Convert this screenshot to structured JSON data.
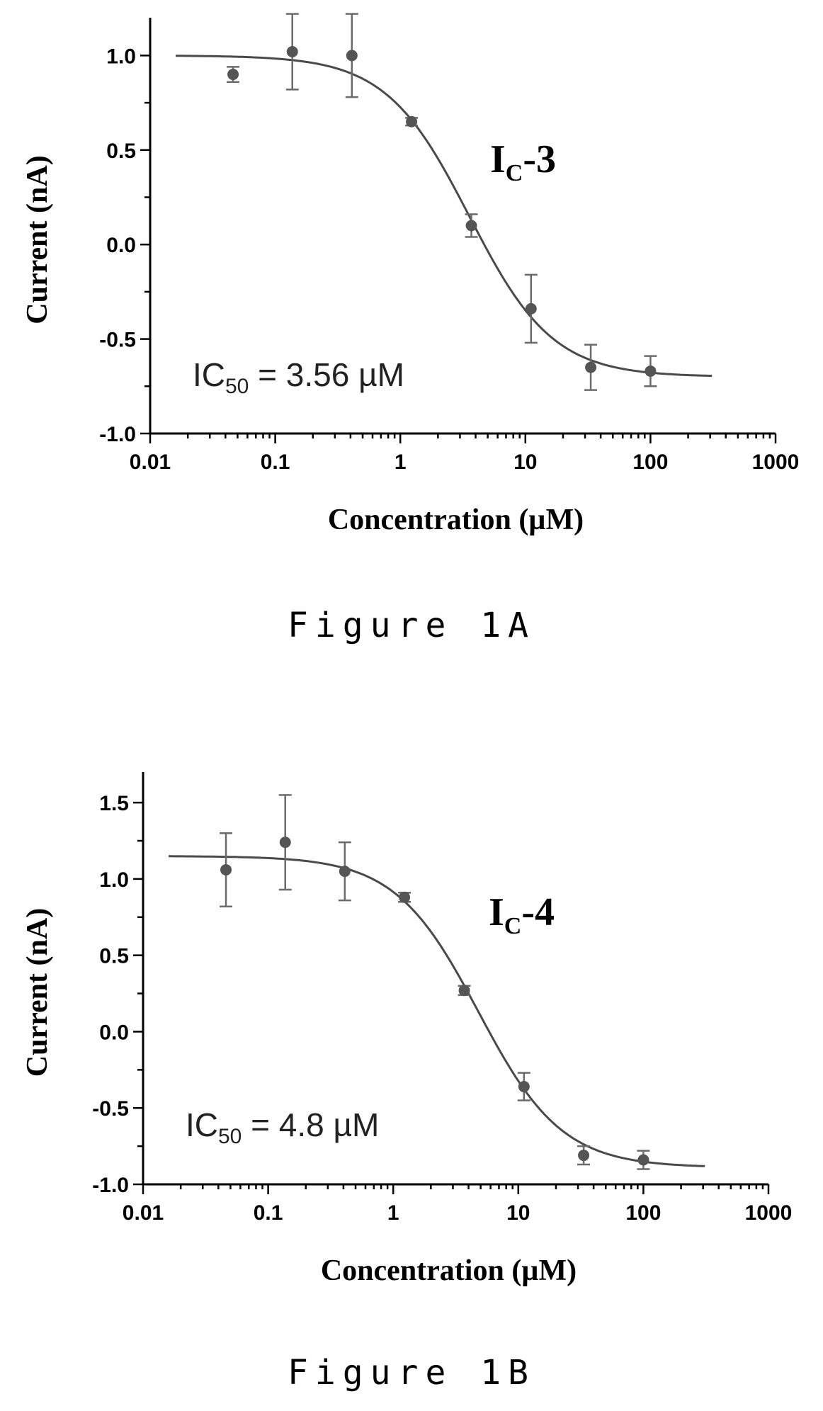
{
  "chart_data": [
    {
      "type": "scatter",
      "panel": "Figure 1A",
      "compound": "I",
      "compound_sub": "C",
      "compound_suffix": "-3",
      "xlabel": "Concentration (µM)",
      "ylabel": "Current (nA)",
      "xscale": "log",
      "xlim": [
        0.01,
        1000
      ],
      "ylim": [
        -1.0,
        1.2
      ],
      "xticks": [
        "0.01",
        "0.1",
        "1",
        "10",
        "100",
        "1000"
      ],
      "yticks": [
        "-1.0",
        "-0.5",
        "0.0",
        "0.5",
        "1.0"
      ],
      "ic50_prefix": "IC",
      "ic50_sub": "50",
      "ic50_text": " = 3.56 µM",
      "points": [
        {
          "x": 0.046,
          "y": 0.9,
          "err": 0.04
        },
        {
          "x": 0.137,
          "y": 1.02,
          "err": 0.2
        },
        {
          "x": 0.41,
          "y": 1.0,
          "err": 0.22
        },
        {
          "x": 1.23,
          "y": 0.65,
          "err": 0.02
        },
        {
          "x": 3.7,
          "y": 0.1,
          "err": 0.06
        },
        {
          "x": 11.1,
          "y": -0.34,
          "err": 0.18
        },
        {
          "x": 33.3,
          "y": -0.65,
          "err": 0.12
        },
        {
          "x": 100,
          "y": -0.67,
          "err": 0.08
        }
      ],
      "fit": {
        "top": 1.0,
        "bottom": -0.7,
        "ic50": 3.56,
        "hill": 1.3,
        "xmin": 0.016,
        "xmax": 310
      }
    },
    {
      "type": "scatter",
      "panel": "Figure 1B",
      "compound": "I",
      "compound_sub": "C",
      "compound_suffix": "-4",
      "xlabel": "Concentration (µM)",
      "ylabel": "Current (nA)",
      "xscale": "log",
      "xlim": [
        0.01,
        1000
      ],
      "ylim": [
        -1.0,
        1.7
      ],
      "xticks": [
        "0.01",
        "0.1",
        "1",
        "10",
        "100",
        "1000"
      ],
      "yticks": [
        "-1.0",
        "-0.5",
        "0.0",
        "0.5",
        "1.0",
        "1.5"
      ],
      "ic50_prefix": "IC",
      "ic50_sub": "50",
      "ic50_text": " = 4.8 µM",
      "points": [
        {
          "x": 0.046,
          "y": 1.06,
          "err": 0.24
        },
        {
          "x": 0.137,
          "y": 1.24,
          "err": 0.31
        },
        {
          "x": 0.41,
          "y": 1.05,
          "err": 0.19
        },
        {
          "x": 1.23,
          "y": 0.88,
          "err": 0.03
        },
        {
          "x": 3.7,
          "y": 0.27,
          "err": 0.03
        },
        {
          "x": 11.1,
          "y": -0.36,
          "err": 0.09
        },
        {
          "x": 33.3,
          "y": -0.81,
          "err": 0.06
        },
        {
          "x": 100,
          "y": -0.84,
          "err": 0.06
        }
      ],
      "fit": {
        "top": 1.15,
        "bottom": -0.89,
        "ic50": 4.8,
        "hill": 1.3,
        "xmin": 0.016,
        "xmax": 310
      }
    }
  ],
  "captions": {
    "fig_a": "Figure  1A",
    "fig_b": "Figure  1B"
  }
}
